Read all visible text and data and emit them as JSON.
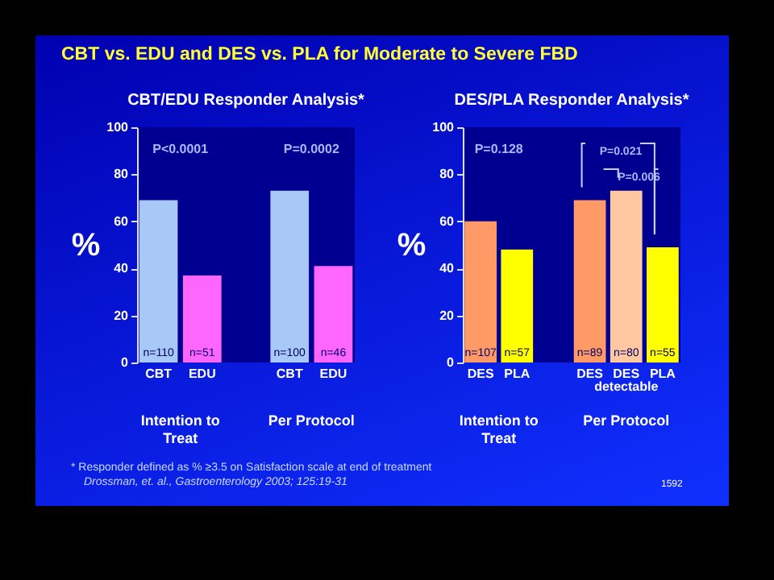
{
  "chart_data": [
    {
      "type": "other",
      "title": "CBT vs. EDU and DES vs. PLA for Moderate to Severe FBD",
      "annotations": [
        "* Responder defined as % ≥3.5 on Satisfaction scale at end of treatment",
        "Drossman, et. al., Gastroenterology 2003; 125:19-31",
        "1592"
      ]
    },
    {
      "type": "bar",
      "title": "CBT/EDU Responder Analysis*",
      "ylabel": "%",
      "categories": [
        "CBT",
        "EDU",
        "CBT",
        "EDU"
      ],
      "values": [
        69,
        37,
        73,
        41
      ],
      "colors": [
        "#a8c8f8",
        "#ff66ff",
        "#a8c8f8",
        "#ff66ff"
      ],
      "ylim": [
        0,
        100
      ],
      "yticks": [
        0,
        20,
        40,
        60,
        80,
        100
      ],
      "annotations": [
        "n=110",
        "n=51",
        "n=100",
        "n=46",
        "P<0.0001",
        "P=0.0002",
        "Intention to Treat",
        "Per Protocol"
      ]
    },
    {
      "type": "bar",
      "title": "DES/PLA Responder Analysis*",
      "ylabel": "%",
      "categories": [
        "DES",
        "PLA",
        "DES",
        "DES detectable",
        "PLA"
      ],
      "values": [
        60,
        48,
        69,
        73,
        49
      ],
      "colors": [
        "#ff9966",
        "#ffff00",
        "#ff9966",
        "#ffc8a0",
        "#ffff00"
      ],
      "ylim": [
        0,
        100
      ],
      "yticks": [
        0,
        20,
        40,
        60,
        80,
        100
      ],
      "annotations": [
        "n=107",
        "n=57",
        "n=89",
        "n=80",
        "n=55",
        "P=0.128",
        "P=0.021",
        "P=0.006",
        "Intention to Treat",
        "Per Protocol"
      ]
    }
  ]
}
